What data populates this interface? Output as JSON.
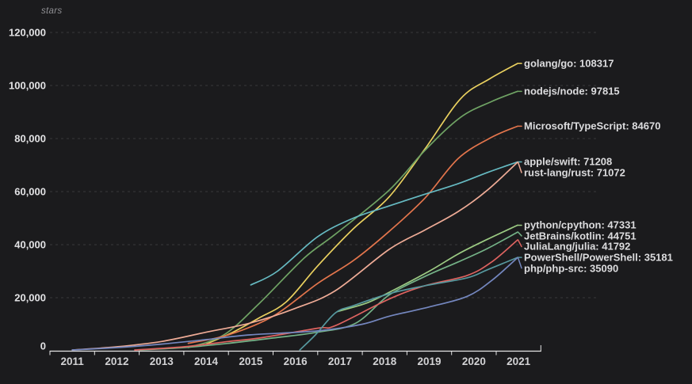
{
  "chart_data": {
    "type": "line",
    "title": "stars",
    "ylabel": "stars",
    "xlabel": "",
    "ylim": [
      0,
      120000
    ],
    "grid": "horizontal dashed gridlines, dark theme",
    "legend_position": "end-of-line labels at right",
    "y_ticks": [
      {
        "value": 0,
        "label": "0"
      },
      {
        "value": 20000,
        "label": "20,000"
      },
      {
        "value": 40000,
        "label": "40,000"
      },
      {
        "value": 60000,
        "label": "60,000"
      },
      {
        "value": 80000,
        "label": "80,000"
      },
      {
        "value": 100000,
        "label": "100,000"
      },
      {
        "value": 120000,
        "label": "120,000"
      }
    ],
    "x_ticks": [
      "2011",
      "2012",
      "2013",
      "2014",
      "2015",
      "2016",
      "2017",
      "2018",
      "2019",
      "2020",
      "2021"
    ],
    "series": [
      {
        "name": "golang/go",
        "final_value": 108317,
        "label": "golang/go: 108317",
        "color": "#e9d05f",
        "points": [
          [
            2014.0,
            2500
          ],
          [
            2014.6,
            7000
          ],
          [
            2015.2,
            12500
          ],
          [
            2015.8,
            18500
          ],
          [
            2016.5,
            32000
          ],
          [
            2017.3,
            46000
          ],
          [
            2018.1,
            58000
          ],
          [
            2018.9,
            76000
          ],
          [
            2019.7,
            95000
          ],
          [
            2020.35,
            102500
          ],
          [
            2020.98,
            108317
          ]
        ]
      },
      {
        "name": "nodejs/node",
        "final_value": 97815,
        "label": "nodejs/node: 97815",
        "color": "#6fa364",
        "points": [
          [
            2013.6,
            1200
          ],
          [
            2014.4,
            6000
          ],
          [
            2015.2,
            18000
          ],
          [
            2016.2,
            35000
          ],
          [
            2016.9,
            44000
          ],
          [
            2018.1,
            60500
          ],
          [
            2018.9,
            75500
          ],
          [
            2019.7,
            88000
          ],
          [
            2020.4,
            94000
          ],
          [
            2020.98,
            97815
          ]
        ]
      },
      {
        "name": "Microsoft/TypeScript",
        "final_value": 84670,
        "label": "Microsoft/TypeScript: 84670",
        "color": "#e3754c",
        "points": [
          [
            2013.6,
            2800
          ],
          [
            2014.5,
            6000
          ],
          [
            2015.5,
            13000
          ],
          [
            2016.5,
            25400
          ],
          [
            2017.3,
            34000
          ],
          [
            2018.1,
            45000
          ],
          [
            2018.9,
            57500
          ],
          [
            2019.65,
            72500
          ],
          [
            2020.4,
            80500
          ],
          [
            2020.98,
            84670
          ]
        ]
      },
      {
        "name": "apple/swift",
        "final_value": 71208,
        "label": "apple/swift: 71208",
        "color": "#66bac2",
        "points": [
          [
            2015.0,
            24800
          ],
          [
            2015.6,
            30000
          ],
          [
            2016.5,
            43000
          ],
          [
            2017.3,
            50000
          ],
          [
            2018.1,
            54600
          ],
          [
            2018.9,
            59000
          ],
          [
            2019.65,
            63000
          ],
          [
            2020.3,
            67200
          ],
          [
            2020.98,
            71208
          ]
        ]
      },
      {
        "name": "rust-lang/rust",
        "final_value": 71072,
        "label": "rust-lang/rust: 71072",
        "color": "#eeab96",
        "points": [
          [
            2011.0,
            300
          ],
          [
            2012.0,
            1500
          ],
          [
            2013.0,
            3500
          ],
          [
            2014.0,
            7000
          ],
          [
            2015.0,
            10500
          ],
          [
            2016.0,
            16000
          ],
          [
            2016.9,
            22700
          ],
          [
            2018.1,
            38200
          ],
          [
            2018.9,
            45500
          ],
          [
            2019.65,
            52500
          ],
          [
            2020.3,
            60500
          ],
          [
            2020.98,
            71072
          ]
        ]
      },
      {
        "name": "python/cpython",
        "final_value": 47331,
        "label": "python/cpython: 47331",
        "color": "#9ccb83",
        "points": [
          [
            2016.95,
            14800
          ],
          [
            2017.6,
            18000
          ],
          [
            2018.1,
            22000
          ],
          [
            2019.0,
            30000
          ],
          [
            2019.65,
            36500
          ],
          [
            2020.3,
            42000
          ],
          [
            2020.98,
            47331
          ]
        ]
      },
      {
        "name": "JetBrains/kotlin",
        "final_value": 44751,
        "label": "JetBrains/kotlin: 44751",
        "color": "#74b287",
        "points": [
          [
            2012.5,
            300
          ],
          [
            2013.5,
            1200
          ],
          [
            2014.5,
            2800
          ],
          [
            2015.5,
            4800
          ],
          [
            2016.5,
            7000
          ],
          [
            2017.35,
            10400
          ],
          [
            2018.1,
            21000
          ],
          [
            2018.9,
            28000
          ],
          [
            2019.65,
            33500
          ],
          [
            2020.3,
            38500
          ],
          [
            2020.98,
            44751
          ]
        ]
      },
      {
        "name": "JuliaLang/julia",
        "final_value": 41792,
        "label": "JuliaLang/julia: 41792",
        "color": "#de6360",
        "points": [
          [
            2012.4,
            300
          ],
          [
            2013.5,
            1500
          ],
          [
            2014.5,
            3500
          ],
          [
            2015.2,
            4800
          ],
          [
            2016.5,
            8500
          ],
          [
            2016.9,
            9500
          ],
          [
            2018.1,
            19500
          ],
          [
            2018.9,
            24500
          ],
          [
            2019.85,
            28400
          ],
          [
            2020.4,
            33500
          ],
          [
            2020.98,
            41792
          ]
        ]
      },
      {
        "name": "PowerShell/PowerShell",
        "final_value": 35181,
        "label": "PowerShell/PowerShell: 35181",
        "color": "#56989e",
        "points": [
          [
            2016.1,
            300
          ],
          [
            2016.45,
            6000
          ],
          [
            2016.9,
            14300
          ],
          [
            2017.3,
            17000
          ],
          [
            2018.1,
            21500
          ],
          [
            2018.9,
            24500
          ],
          [
            2019.85,
            27500
          ],
          [
            2020.3,
            30500
          ],
          [
            2020.98,
            35181
          ]
        ]
      },
      {
        "name": "php/php-src",
        "final_value": 35090,
        "label": "php/php-src: 35090",
        "color": "#7487bf",
        "points": [
          [
            2011.0,
            300
          ],
          [
            2012.0,
            1200
          ],
          [
            2013.0,
            2500
          ],
          [
            2014.0,
            4200
          ],
          [
            2015.0,
            6000
          ],
          [
            2016.5,
            7500
          ],
          [
            2017.5,
            10000
          ],
          [
            2018.1,
            13000
          ],
          [
            2019.0,
            16500
          ],
          [
            2019.85,
            20500
          ],
          [
            2020.4,
            26500
          ],
          [
            2020.98,
            35090
          ]
        ]
      }
    ]
  },
  "colors": {
    "background": "#1b1b1d",
    "grid": "#3a3a3c",
    "axis": "#e6e6e6",
    "x_tick_text": "#d2d2d4",
    "y_tick_text": "#e2e2e4",
    "series_label_text": "#dcdcde",
    "title_text": "#909094"
  }
}
